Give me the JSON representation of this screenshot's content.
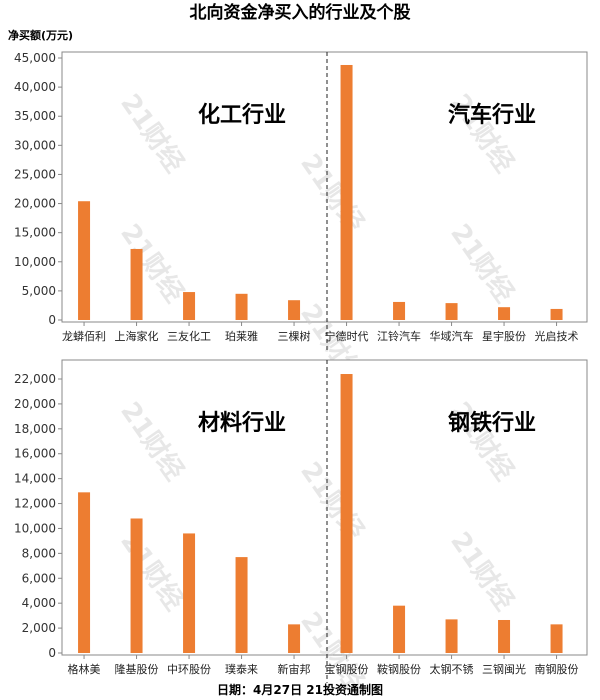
{
  "title": "北向资金净买入的行业及个股",
  "ylabel": "净买额(万元)",
  "footer": "日期：4月27日 21投资通制图",
  "watermark": "21财经",
  "bar_color": "#ED7D31",
  "chart_data": [
    {
      "type": "bar",
      "ylim": [
        0,
        45000
      ],
      "yticks": [
        0,
        5000,
        10000,
        15000,
        20000,
        25000,
        30000,
        35000,
        40000,
        45000
      ],
      "groups": [
        "化工行业",
        "汽车行业"
      ],
      "categories": [
        "龙蟒佰利",
        "上海家化",
        "三友化工",
        "珀莱雅",
        "三棵树",
        "宁德时代",
        "江铃汽车",
        "华域汽车",
        "星宇股份",
        "光启技术"
      ],
      "values": [
        20400,
        12200,
        4800,
        4500,
        3400,
        43800,
        3100,
        2900,
        2200,
        1900
      ]
    },
    {
      "type": "bar",
      "ylim": [
        0,
        22000
      ],
      "yticks": [
        0,
        2000,
        4000,
        6000,
        8000,
        10000,
        12000,
        14000,
        16000,
        18000,
        20000,
        22000
      ],
      "groups": [
        "材料行业",
        "钢铁行业"
      ],
      "categories": [
        "格林美",
        "隆基股份",
        "中环股份",
        "璞泰来",
        "新宙邦",
        "宝钢股份",
        "鞍钢股份",
        "太钢不锈",
        "三钢闽光",
        "南钢股份"
      ],
      "values": [
        12900,
        10800,
        9600,
        7700,
        2300,
        22400,
        3800,
        2700,
        2650,
        2300
      ]
    }
  ]
}
